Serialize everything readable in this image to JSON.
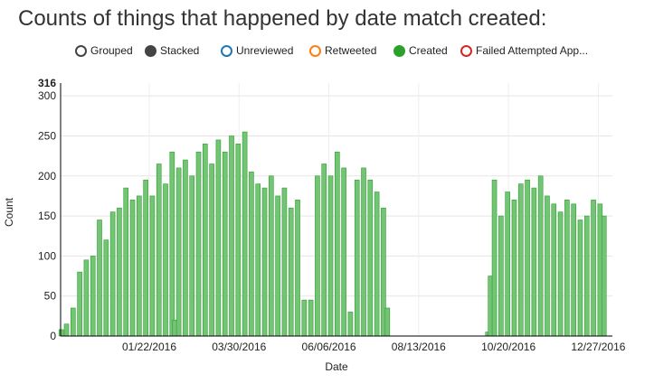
{
  "title": "Counts of things that happened by date match created:",
  "legend": [
    {
      "label": "Grouped",
      "color": "#444444",
      "filled": false
    },
    {
      "label": "Stacked",
      "color": "#444444",
      "filled": true
    },
    {
      "label": "Unreviewed",
      "color": "#1f77b4",
      "filled": false
    },
    {
      "label": "Retweeted",
      "color": "#ff7f0e",
      "filled": false
    },
    {
      "label": "Created",
      "color": "#2ca02c",
      "filled": true
    },
    {
      "label": "Failed Attempted App...",
      "color": "#d62728",
      "filled": false
    }
  ],
  "chart_data": {
    "type": "bar",
    "mode": "stacked",
    "xlabel": "Date",
    "ylabel": "Count",
    "ylim": [
      0,
      316
    ],
    "ymax_label": "316",
    "y_ticks": [
      0,
      50,
      100,
      150,
      200,
      250,
      300
    ],
    "x_ticks": [
      "01/22/2016",
      "03/30/2016",
      "06/06/2016",
      "08/13/2016",
      "10/20/2016",
      "12/27/2016"
    ],
    "grid": true,
    "series": [
      {
        "name": "Created",
        "color": "#2ca02c",
        "points": [
          [
            "11/16/2015",
            8
          ],
          [
            "11/20/2015",
            15
          ],
          [
            "11/25/2015",
            35
          ],
          [
            "11/30/2015",
            80
          ],
          [
            "12/05/2015",
            95
          ],
          [
            "12/10/2015",
            100
          ],
          [
            "12/15/2015",
            145
          ],
          [
            "12/20/2015",
            120
          ],
          [
            "12/25/2015",
            155
          ],
          [
            "12/30/2015",
            160
          ],
          [
            "01/04/2016",
            185
          ],
          [
            "01/09/2016",
            170
          ],
          [
            "01/14/2016",
            175
          ],
          [
            "01/19/2016",
            195
          ],
          [
            "01/24/2016",
            175
          ],
          [
            "01/29/2016",
            215
          ],
          [
            "02/03/2016",
            190
          ],
          [
            "02/08/2016",
            230
          ],
          [
            "02/10/2016",
            20
          ],
          [
            "02/13/2016",
            210
          ],
          [
            "02/18/2016",
            220
          ],
          [
            "02/23/2016",
            200
          ],
          [
            "02/28/2016",
            230
          ],
          [
            "03/04/2016",
            240
          ],
          [
            "03/09/2016",
            215
          ],
          [
            "03/14/2016",
            245
          ],
          [
            "03/19/2016",
            230
          ],
          [
            "03/24/2016",
            250
          ],
          [
            "03/29/2016",
            240
          ],
          [
            "04/03/2016",
            255
          ],
          [
            "04/08/2016",
            205
          ],
          [
            "04/13/2016",
            190
          ],
          [
            "04/18/2016",
            185
          ],
          [
            "04/23/2016",
            200
          ],
          [
            "04/28/2016",
            175
          ],
          [
            "05/03/2016",
            185
          ],
          [
            "05/08/2016",
            160
          ],
          [
            "05/13/2016",
            170
          ],
          [
            "05/18/2016",
            45
          ],
          [
            "05/23/2016",
            45
          ],
          [
            "05/28/2016",
            200
          ],
          [
            "06/02/2016",
            215
          ],
          [
            "06/07/2016",
            200
          ],
          [
            "06/12/2016",
            230
          ],
          [
            "06/17/2016",
            210
          ],
          [
            "06/22/2016",
            30
          ],
          [
            "06/27/2016",
            195
          ],
          [
            "07/02/2016",
            210
          ],
          [
            "07/07/2016",
            195
          ],
          [
            "07/12/2016",
            180
          ],
          [
            "07/17/2016",
            160
          ],
          [
            "07/20/2016",
            35
          ],
          [
            "10/04/2016",
            5
          ],
          [
            "10/06/2016",
            75
          ],
          [
            "10/09/2016",
            195
          ],
          [
            "10/14/2016",
            150
          ],
          [
            "10/19/2016",
            180
          ],
          [
            "10/24/2016",
            170
          ],
          [
            "10/29/2016",
            190
          ],
          [
            "11/03/2016",
            195
          ],
          [
            "11/08/2016",
            185
          ],
          [
            "11/13/2016",
            200
          ],
          [
            "11/18/2016",
            175
          ],
          [
            "11/23/2016",
            165
          ],
          [
            "11/28/2016",
            155
          ],
          [
            "12/03/2016",
            170
          ],
          [
            "12/08/2016",
            165
          ],
          [
            "12/13/2016",
            145
          ],
          [
            "12/18/2016",
            150
          ],
          [
            "12/23/2016",
            170
          ],
          [
            "12/28/2016",
            165
          ],
          [
            "12/31/2016",
            150
          ]
        ]
      }
    ]
  }
}
